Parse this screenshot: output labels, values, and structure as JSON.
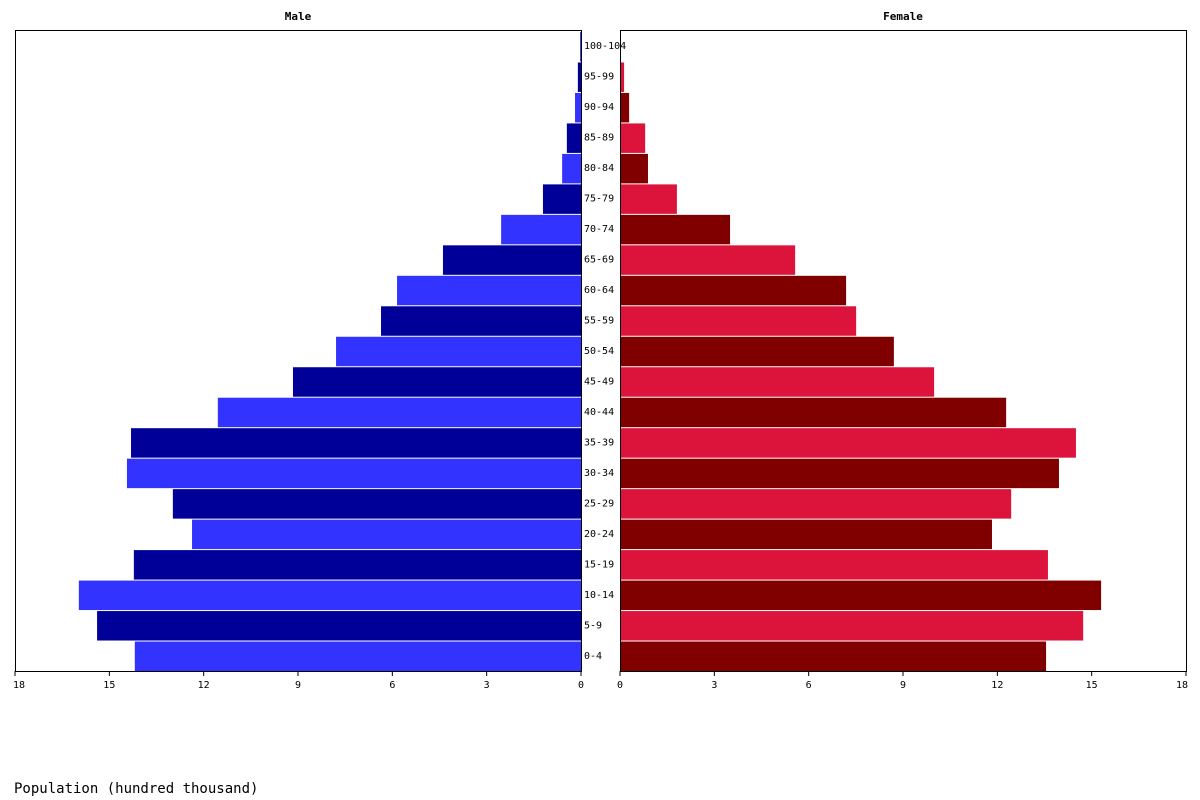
{
  "chart_data": {
    "type": "pyramid",
    "xlabel": "Population (hundred thousand)",
    "categories": [
      "0-4",
      "5-9",
      "10-14",
      "15-19",
      "20-24",
      "25-29",
      "30-34",
      "35-39",
      "40-44",
      "45-49",
      "50-54",
      "55-59",
      "60-64",
      "65-69",
      "70-74",
      "75-79",
      "80-84",
      "85-89",
      "90-94",
      "95-99",
      "100-104"
    ],
    "series": [
      {
        "name": "Male",
        "colors": [
          "#3333ff",
          "#000099"
        ],
        "values": [
          14.19,
          15.39,
          15.97,
          14.22,
          12.37,
          12.98,
          14.44,
          14.31,
          11.55,
          9.16,
          7.79,
          6.36,
          5.85,
          4.39,
          2.54,
          1.21,
          0.6,
          0.45,
          0.19,
          0.1,
          0.03
        ]
      },
      {
        "name": "Female",
        "colors": [
          "#800000",
          "#dc143c"
        ],
        "values": [
          13.55,
          14.73,
          15.3,
          13.61,
          11.83,
          12.44,
          13.96,
          14.5,
          12.28,
          9.99,
          8.71,
          7.51,
          7.19,
          5.57,
          3.5,
          1.81,
          0.89,
          0.8,
          0.29,
          0.13,
          0.03
        ]
      }
    ],
    "xlim": [
      0,
      18
    ],
    "xticks": [
      0,
      3,
      6,
      9,
      12,
      15,
      18
    ]
  }
}
